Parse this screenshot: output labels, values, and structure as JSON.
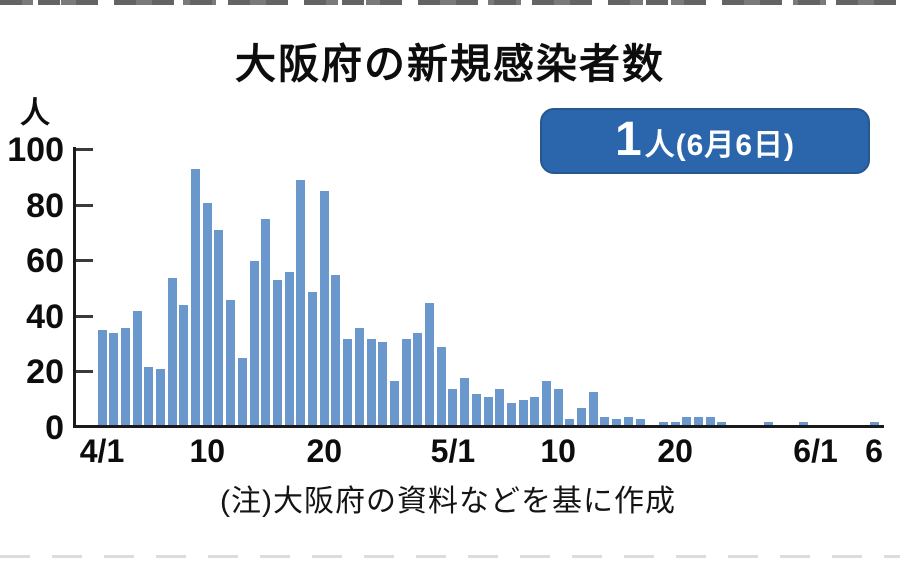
{
  "title": "大阪府の新規感染者数",
  "badge": {
    "count": "1",
    "suffix": "人(6月6日)",
    "bg_color": "#2b66ad",
    "border_color": "#24588f",
    "text_color": "#ffffff"
  },
  "note": "(注)大阪府の資料などを基に作成",
  "chart_data": {
    "type": "bar",
    "title": "大阪府の新規感染者数",
    "xlabel": "",
    "ylabel": "人",
    "ylim": [
      0,
      100
    ],
    "yticks": [
      0,
      20,
      40,
      60,
      80,
      100
    ],
    "grid": false,
    "legend": "none",
    "bar_color": "#6b98cc",
    "xtick_labels": [
      "4/1",
      "10",
      "20",
      "5/1",
      "10",
      "20",
      "6/1",
      "6"
    ],
    "xtick_day_indices": [
      0,
      9,
      19,
      30,
      39,
      49,
      61,
      66
    ],
    "latest_annotation": "1人(6月6日)",
    "dates": [
      "4/1",
      "4/2",
      "4/3",
      "4/4",
      "4/5",
      "4/6",
      "4/7",
      "4/8",
      "4/9",
      "4/10",
      "4/11",
      "4/12",
      "4/13",
      "4/14",
      "4/15",
      "4/16",
      "4/17",
      "4/18",
      "4/19",
      "4/20",
      "4/21",
      "4/22",
      "4/23",
      "4/24",
      "4/25",
      "4/26",
      "4/27",
      "4/28",
      "4/29",
      "4/30",
      "5/1",
      "5/2",
      "5/3",
      "5/4",
      "5/5",
      "5/6",
      "5/7",
      "5/8",
      "5/9",
      "5/10",
      "5/11",
      "5/12",
      "5/13",
      "5/14",
      "5/15",
      "5/16",
      "5/17",
      "5/18",
      "5/19",
      "5/20",
      "5/21",
      "5/22",
      "5/23",
      "5/24",
      "5/25",
      "5/26",
      "5/27",
      "5/28",
      "5/29",
      "5/30",
      "5/31",
      "6/1",
      "6/2",
      "6/3",
      "6/4",
      "6/5",
      "6/6"
    ],
    "values": [
      34,
      33,
      35,
      41,
      21,
      20,
      53,
      43,
      92,
      80,
      70,
      45,
      24,
      59,
      74,
      52,
      55,
      88,
      48,
      84,
      54,
      31,
      35,
      31,
      30,
      16,
      31,
      33,
      44,
      28,
      13,
      17,
      11,
      10,
      13,
      8,
      9,
      10,
      16,
      13,
      2,
      6,
      12,
      3,
      2,
      3,
      2,
      0,
      1,
      1,
      3,
      3,
      3,
      1,
      0,
      0,
      0,
      1,
      0,
      0,
      1,
      0,
      0,
      0,
      0,
      0,
      1
    ]
  }
}
